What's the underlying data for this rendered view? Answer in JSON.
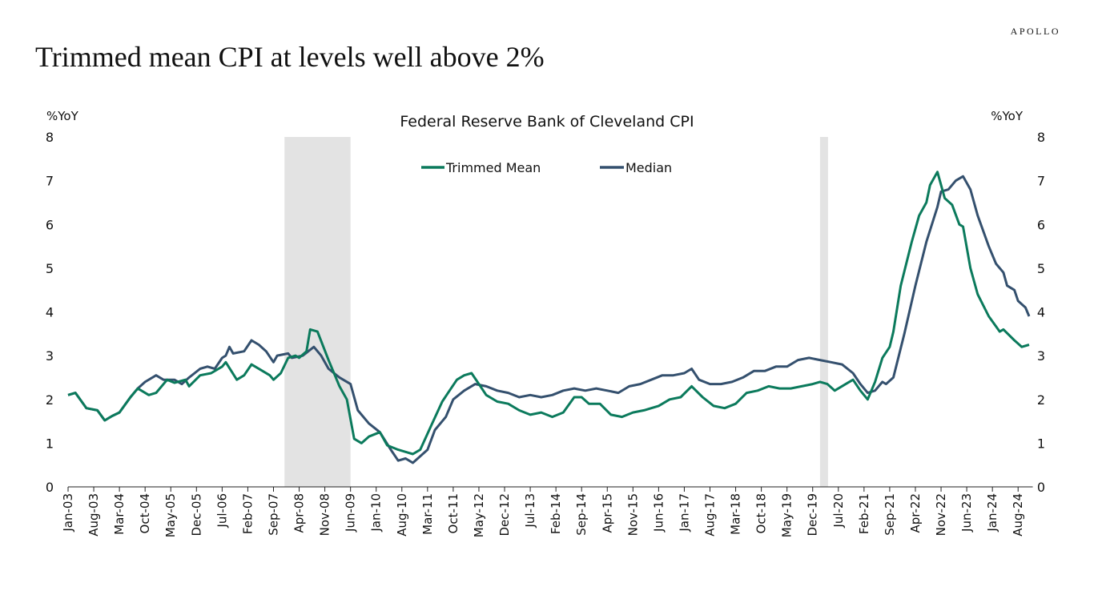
{
  "header": {
    "title": "Trimmed mean CPI at levels well above 2%",
    "logo": "APOLLO"
  },
  "chart_data": {
    "type": "line",
    "title": "Federal Reserve Bank of Cleveland CPI",
    "ylabel_left": "%YoY",
    "ylabel_right": "%YoY",
    "ylim": [
      0,
      8
    ],
    "yticks": [
      0,
      1,
      2,
      3,
      4,
      5,
      6,
      7,
      8
    ],
    "xlim": [
      "2003-01",
      "2024-12"
    ],
    "xtick_labels": [
      "Jan-03",
      "Aug-03",
      "Mar-04",
      "Oct-04",
      "May-05",
      "Dec-05",
      "Jul-06",
      "Feb-07",
      "Sep-07",
      "Apr-08",
      "Nov-08",
      "Jun-09",
      "Jan-10",
      "Aug-10",
      "Mar-11",
      "Oct-11",
      "May-12",
      "Dec-12",
      "Jul-13",
      "Feb-14",
      "Sep-14",
      "Apr-15",
      "Nov-15",
      "Jun-16",
      "Jan-17",
      "Aug-17",
      "Mar-18",
      "Oct-18",
      "May-19",
      "Dec-19",
      "Jul-20",
      "Feb-21",
      "Sep-21",
      "Apr-22",
      "Nov-22",
      "Jun-23",
      "Jan-24",
      "Aug-24"
    ],
    "legend_position": "top-center",
    "grid": false,
    "recessions": [
      [
        "2007-12",
        "2009-06"
      ],
      [
        "2020-02",
        "2020-04"
      ]
    ],
    "colors": {
      "trimmed_mean": "#0b7a5c",
      "median": "#34506e",
      "recession": "#e3e3e3"
    },
    "series": [
      {
        "name": "Trimmed Mean",
        "key": "trimmed_mean",
        "points": [
          [
            "2003-01",
            2.1
          ],
          [
            "2003-03",
            2.15
          ],
          [
            "2003-06",
            1.8
          ],
          [
            "2003-09",
            1.75
          ],
          [
            "2003-11",
            1.52
          ],
          [
            "2004-01",
            1.62
          ],
          [
            "2004-03",
            1.7
          ],
          [
            "2004-06",
            2.05
          ],
          [
            "2004-08",
            2.25
          ],
          [
            "2004-11",
            2.1
          ],
          [
            "2005-01",
            2.15
          ],
          [
            "2005-04",
            2.45
          ],
          [
            "2005-06",
            2.38
          ],
          [
            "2005-09",
            2.45
          ],
          [
            "2005-10",
            2.3
          ],
          [
            "2006-01",
            2.55
          ],
          [
            "2006-04",
            2.6
          ],
          [
            "2006-07",
            2.75
          ],
          [
            "2006-08",
            2.85
          ],
          [
            "2006-11",
            2.45
          ],
          [
            "2007-01",
            2.55
          ],
          [
            "2007-03",
            2.8
          ],
          [
            "2007-06",
            2.65
          ],
          [
            "2007-08",
            2.55
          ],
          [
            "2007-09",
            2.45
          ],
          [
            "2007-11",
            2.6
          ],
          [
            "2008-01",
            2.95
          ],
          [
            "2008-03",
            3.0
          ],
          [
            "2008-04",
            2.95
          ],
          [
            "2008-06",
            3.1
          ],
          [
            "2008-07",
            3.6
          ],
          [
            "2008-09",
            3.55
          ],
          [
            "2008-12",
            2.9
          ],
          [
            "2009-03",
            2.3
          ],
          [
            "2009-05",
            2.0
          ],
          [
            "2009-07",
            1.1
          ],
          [
            "2009-09",
            1.0
          ],
          [
            "2009-11",
            1.15
          ],
          [
            "2010-02",
            1.25
          ],
          [
            "2010-04",
            0.95
          ],
          [
            "2010-07",
            0.85
          ],
          [
            "2010-09",
            0.8
          ],
          [
            "2010-11",
            0.75
          ],
          [
            "2011-01",
            0.85
          ],
          [
            "2011-04",
            1.4
          ],
          [
            "2011-07",
            1.95
          ],
          [
            "2011-09",
            2.2
          ],
          [
            "2011-11",
            2.45
          ],
          [
            "2012-01",
            2.55
          ],
          [
            "2012-03",
            2.6
          ],
          [
            "2012-05",
            2.35
          ],
          [
            "2012-07",
            2.1
          ],
          [
            "2012-10",
            1.95
          ],
          [
            "2013-01",
            1.9
          ],
          [
            "2013-04",
            1.75
          ],
          [
            "2013-07",
            1.65
          ],
          [
            "2013-10",
            1.7
          ],
          [
            "2014-01",
            1.6
          ],
          [
            "2014-04",
            1.7
          ],
          [
            "2014-07",
            2.05
          ],
          [
            "2014-09",
            2.05
          ],
          [
            "2014-11",
            1.9
          ],
          [
            "2015-02",
            1.9
          ],
          [
            "2015-05",
            1.65
          ],
          [
            "2015-08",
            1.6
          ],
          [
            "2015-11",
            1.7
          ],
          [
            "2016-02",
            1.75
          ],
          [
            "2016-06",
            1.85
          ],
          [
            "2016-09",
            2.0
          ],
          [
            "2016-12",
            2.05
          ],
          [
            "2017-03",
            2.3
          ],
          [
            "2017-06",
            2.05
          ],
          [
            "2017-09",
            1.85
          ],
          [
            "2017-12",
            1.8
          ],
          [
            "2018-03",
            1.9
          ],
          [
            "2018-06",
            2.15
          ],
          [
            "2018-09",
            2.2
          ],
          [
            "2018-12",
            2.3
          ],
          [
            "2019-03",
            2.25
          ],
          [
            "2019-06",
            2.25
          ],
          [
            "2019-09",
            2.3
          ],
          [
            "2019-12",
            2.35
          ],
          [
            "2020-02",
            2.4
          ],
          [
            "2020-04",
            2.35
          ],
          [
            "2020-06",
            2.2
          ],
          [
            "2020-09",
            2.35
          ],
          [
            "2020-11",
            2.45
          ],
          [
            "2021-01",
            2.2
          ],
          [
            "2021-03",
            2.0
          ],
          [
            "2021-05",
            2.4
          ],
          [
            "2021-07",
            2.95
          ],
          [
            "2021-09",
            3.2
          ],
          [
            "2021-10",
            3.55
          ],
          [
            "2021-12",
            4.6
          ],
          [
            "2022-03",
            5.6
          ],
          [
            "2022-05",
            6.2
          ],
          [
            "2022-07",
            6.5
          ],
          [
            "2022-08",
            6.9
          ],
          [
            "2022-10",
            7.2
          ],
          [
            "2022-12",
            6.6
          ],
          [
            "2023-02",
            6.45
          ],
          [
            "2023-04",
            6.0
          ],
          [
            "2023-05",
            5.95
          ],
          [
            "2023-07",
            5.0
          ],
          [
            "2023-09",
            4.4
          ],
          [
            "2023-12",
            3.9
          ],
          [
            "2024-03",
            3.55
          ],
          [
            "2024-04",
            3.6
          ],
          [
            "2024-07",
            3.35
          ],
          [
            "2024-09",
            3.2
          ],
          [
            "2024-11",
            3.25
          ]
        ]
      },
      {
        "name": "Median",
        "key": "median",
        "points": [
          [
            "2003-01",
            2.1
          ],
          [
            "2003-03",
            2.15
          ],
          [
            "2003-06",
            1.8
          ],
          [
            "2003-09",
            1.75
          ],
          [
            "2003-11",
            1.52
          ],
          [
            "2004-01",
            1.62
          ],
          [
            "2004-03",
            1.7
          ],
          [
            "2004-06",
            2.05
          ],
          [
            "2004-08",
            2.25
          ],
          [
            "2004-10",
            2.4
          ],
          [
            "2005-01",
            2.55
          ],
          [
            "2005-03",
            2.45
          ],
          [
            "2005-06",
            2.45
          ],
          [
            "2005-08",
            2.35
          ],
          [
            "2005-10",
            2.5
          ],
          [
            "2006-01",
            2.7
          ],
          [
            "2006-03",
            2.75
          ],
          [
            "2006-05",
            2.7
          ],
          [
            "2006-07",
            2.95
          ],
          [
            "2006-08",
            3.0
          ],
          [
            "2006-09",
            3.2
          ],
          [
            "2006-10",
            3.05
          ],
          [
            "2007-01",
            3.1
          ],
          [
            "2007-03",
            3.35
          ],
          [
            "2007-05",
            3.25
          ],
          [
            "2007-07",
            3.1
          ],
          [
            "2007-09",
            2.85
          ],
          [
            "2007-10",
            3.0
          ],
          [
            "2008-01",
            3.05
          ],
          [
            "2008-02",
            2.95
          ],
          [
            "2008-05",
            3.0
          ],
          [
            "2008-08",
            3.2
          ],
          [
            "2008-10",
            3.0
          ],
          [
            "2008-12",
            2.7
          ],
          [
            "2009-03",
            2.5
          ],
          [
            "2009-06",
            2.35
          ],
          [
            "2009-08",
            1.75
          ],
          [
            "2009-11",
            1.45
          ],
          [
            "2010-02",
            1.25
          ],
          [
            "2010-05",
            0.85
          ],
          [
            "2010-07",
            0.6
          ],
          [
            "2010-09",
            0.65
          ],
          [
            "2010-11",
            0.55
          ],
          [
            "2011-01",
            0.7
          ],
          [
            "2011-03",
            0.85
          ],
          [
            "2011-05",
            1.3
          ],
          [
            "2011-08",
            1.6
          ],
          [
            "2011-10",
            2.0
          ],
          [
            "2012-01",
            2.2
          ],
          [
            "2012-04",
            2.35
          ],
          [
            "2012-07",
            2.3
          ],
          [
            "2012-10",
            2.2
          ],
          [
            "2013-01",
            2.15
          ],
          [
            "2013-04",
            2.05
          ],
          [
            "2013-07",
            2.1
          ],
          [
            "2013-10",
            2.05
          ],
          [
            "2014-01",
            2.1
          ],
          [
            "2014-04",
            2.2
          ],
          [
            "2014-07",
            2.25
          ],
          [
            "2014-10",
            2.2
          ],
          [
            "2015-01",
            2.25
          ],
          [
            "2015-04",
            2.2
          ],
          [
            "2015-07",
            2.15
          ],
          [
            "2015-10",
            2.3
          ],
          [
            "2016-01",
            2.35
          ],
          [
            "2016-04",
            2.45
          ],
          [
            "2016-07",
            2.55
          ],
          [
            "2016-10",
            2.55
          ],
          [
            "2017-01",
            2.6
          ],
          [
            "2017-03",
            2.7
          ],
          [
            "2017-05",
            2.45
          ],
          [
            "2017-08",
            2.35
          ],
          [
            "2017-11",
            2.35
          ],
          [
            "2018-02",
            2.4
          ],
          [
            "2018-05",
            2.5
          ],
          [
            "2018-08",
            2.65
          ],
          [
            "2018-11",
            2.65
          ],
          [
            "2019-02",
            2.75
          ],
          [
            "2019-05",
            2.75
          ],
          [
            "2019-08",
            2.9
          ],
          [
            "2019-11",
            2.95
          ],
          [
            "2020-02",
            2.9
          ],
          [
            "2020-05",
            2.85
          ],
          [
            "2020-08",
            2.8
          ],
          [
            "2020-11",
            2.6
          ],
          [
            "2021-01",
            2.35
          ],
          [
            "2021-03",
            2.15
          ],
          [
            "2021-05",
            2.2
          ],
          [
            "2021-07",
            2.4
          ],
          [
            "2021-08",
            2.35
          ],
          [
            "2021-10",
            2.5
          ],
          [
            "2022-01",
            3.5
          ],
          [
            "2022-04",
            4.6
          ],
          [
            "2022-07",
            5.6
          ],
          [
            "2022-10",
            6.4
          ],
          [
            "2022-11",
            6.75
          ],
          [
            "2023-01",
            6.8
          ],
          [
            "2023-03",
            7.0
          ],
          [
            "2023-05",
            7.1
          ],
          [
            "2023-07",
            6.8
          ],
          [
            "2023-09",
            6.2
          ],
          [
            "2023-12",
            5.5
          ],
          [
            "2024-02",
            5.1
          ],
          [
            "2024-04",
            4.9
          ],
          [
            "2024-05",
            4.6
          ],
          [
            "2024-07",
            4.5
          ],
          [
            "2024-08",
            4.25
          ],
          [
            "2024-10",
            4.1
          ],
          [
            "2024-11",
            3.9
          ]
        ]
      }
    ]
  }
}
